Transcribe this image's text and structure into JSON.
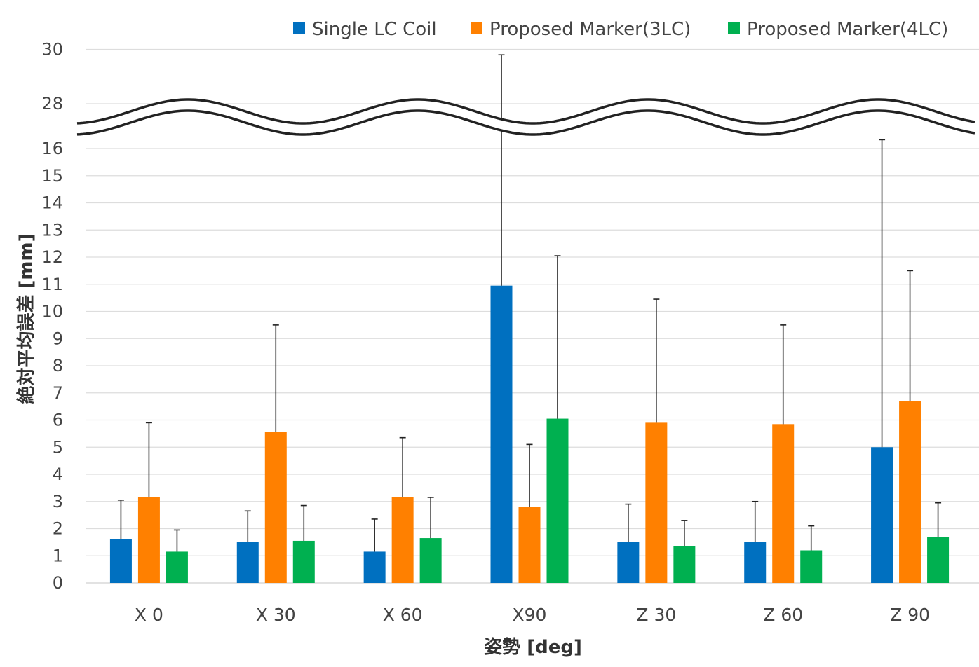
{
  "chart_data": {
    "type": "bar",
    "title": "",
    "xlabel": "姿勢 [deg]",
    "ylabel": "絶対平均誤差 [mm]",
    "categories": [
      "X 0",
      "X 30",
      "X 60",
      "X90",
      "Z 30",
      "Z 60",
      "Z 90"
    ],
    "series": [
      {
        "name": "Single LC Coil",
        "color": "#0070C0",
        "values": [
          1.6,
          1.5,
          1.15,
          10.95,
          1.5,
          1.5,
          5.0
        ],
        "error_upper": [
          3.05,
          2.65,
          2.35,
          29.8,
          2.9,
          3.0,
          16.6
        ]
      },
      {
        "name": "Proposed Marker(3LC)",
        "color": "#FF8000",
        "values": [
          3.15,
          5.55,
          3.15,
          2.8,
          5.9,
          5.85,
          6.7
        ],
        "error_upper": [
          5.9,
          9.5,
          5.35,
          5.1,
          10.45,
          9.5,
          11.5
        ]
      },
      {
        "name": "Proposed Marker(4LC)",
        "color": "#00B050",
        "values": [
          1.15,
          1.55,
          1.65,
          6.05,
          1.35,
          1.2,
          1.7
        ],
        "error_upper": [
          1.95,
          2.85,
          3.15,
          12.05,
          2.3,
          2.1,
          2.95
        ]
      }
    ],
    "y_ticks_lower": [
      "0",
      "1",
      "2",
      "3",
      "4",
      "5",
      "6",
      "7",
      "8",
      "9",
      "10",
      "11",
      "12",
      "13",
      "14",
      "15",
      "16"
    ],
    "y_ticks_upper": [
      "28",
      "30"
    ],
    "ylim": [
      0,
      30
    ],
    "axis_break": {
      "from": 16.3,
      "to": 27.6
    },
    "grid": true,
    "legend": "top"
  }
}
